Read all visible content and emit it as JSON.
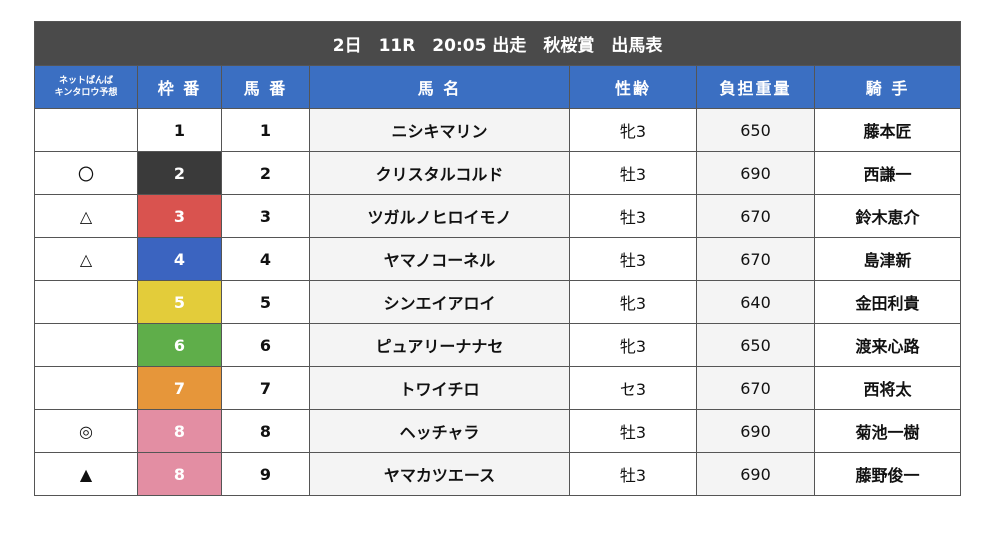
{
  "title": "2日　11R　20:05 出走　秋桜賞　出馬表",
  "headers": {
    "yoso_line1": "ネットぱんば",
    "yoso_line2": "キンタロウ予想",
    "waku": "枠 番",
    "umaban": "馬 番",
    "bamei": "馬 名",
    "seirei": "性齢",
    "futan": "負担重量",
    "kishu": "騎 手"
  },
  "colors": {
    "header_blue": "#3b6fc2",
    "title_bg": "#4a4a4a",
    "waku": {
      "1": "#ffffff",
      "2": "#3a3a3a",
      "3": "#d9534f",
      "4": "#3b64c0",
      "5": "#e3cc3a",
      "6": "#5fae4a",
      "7": "#e6963a",
      "8": "#e38ea3"
    },
    "waku_text": {
      "1": "#111111",
      "other": "#ffffff"
    }
  },
  "rows": [
    {
      "mark": "",
      "waku": "1",
      "umaban": "1",
      "name": "ニシキマリン",
      "sexage": "牝3",
      "weight": "650",
      "jockey": "藤本匠"
    },
    {
      "mark": "〇",
      "waku": "2",
      "umaban": "2",
      "name": "クリスタルコルド",
      "sexage": "牡3",
      "weight": "690",
      "jockey": "西謙一"
    },
    {
      "mark": "△",
      "waku": "3",
      "umaban": "3",
      "name": "ツガルノヒロイモノ",
      "sexage": "牡3",
      "weight": "670",
      "jockey": "鈴木恵介"
    },
    {
      "mark": "△",
      "waku": "4",
      "umaban": "4",
      "name": "ヤマノコーネル",
      "sexage": "牡3",
      "weight": "670",
      "jockey": "島津新"
    },
    {
      "mark": "",
      "waku": "5",
      "umaban": "5",
      "name": "シンエイアロイ",
      "sexage": "牝3",
      "weight": "640",
      "jockey": "金田利貴"
    },
    {
      "mark": "",
      "waku": "6",
      "umaban": "6",
      "name": "ピュアリーナナセ",
      "sexage": "牝3",
      "weight": "650",
      "jockey": "渡来心路"
    },
    {
      "mark": "",
      "waku": "7",
      "umaban": "7",
      "name": "トワイチロ",
      "sexage": "セ3",
      "weight": "670",
      "jockey": "西将太"
    },
    {
      "mark": "◎",
      "waku": "8",
      "umaban": "8",
      "name": "ヘッチャラ",
      "sexage": "牡3",
      "weight": "690",
      "jockey": "菊池一樹"
    },
    {
      "mark": "▲",
      "waku": "8",
      "umaban": "9",
      "name": "ヤマカツエース",
      "sexage": "牡3",
      "weight": "690",
      "jockey": "藤野俊一"
    }
  ]
}
